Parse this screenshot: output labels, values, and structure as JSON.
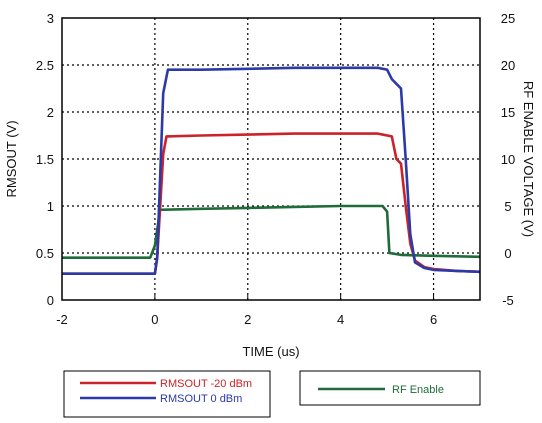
{
  "chart_data": {
    "type": "line",
    "xlabel": "TIME (us)",
    "ylabel": "RMSOUT (V)",
    "y2label": "RF ENABLE VOLTAGE (V)",
    "xlim": [
      -2,
      7
    ],
    "ylim": [
      0,
      3
    ],
    "y2lim": [
      -5,
      25
    ],
    "grid": true,
    "xticks": [
      "-2",
      "0",
      "2",
      "4",
      "6"
    ],
    "yticks": [
      "0",
      "0.5",
      "1",
      "1.5",
      "2",
      "2.5",
      "3"
    ],
    "y2ticks": [
      "-5",
      "0",
      "5",
      "10",
      "15",
      "20",
      "25"
    ],
    "legend_placement": "bottom",
    "series": [
      {
        "name": "RMSOUT -20 dBm",
        "axis": "left",
        "color": "#cc2229",
        "x": [
          -2,
          -1,
          0,
          0.05,
          0.18,
          0.25,
          1,
          2,
          3,
          4,
          4.8,
          5.1,
          5.2,
          5.3,
          5.4,
          5.5,
          5.6,
          5.8,
          6,
          6.5,
          7
        ],
        "y": [
          0.28,
          0.28,
          0.28,
          0.45,
          1.55,
          1.74,
          1.75,
          1.76,
          1.77,
          1.77,
          1.77,
          1.74,
          1.5,
          1.45,
          1.0,
          0.6,
          0.42,
          0.35,
          0.33,
          0.31,
          0.3
        ]
      },
      {
        "name": "RMSOUT 0 dBm",
        "axis": "left",
        "color": "#2b3aa8",
        "x": [
          -2,
          -1,
          0,
          0.05,
          0.18,
          0.28,
          1,
          2,
          3,
          4,
          4.8,
          5.0,
          5.1,
          5.2,
          5.3,
          5.4,
          5.5,
          5.6,
          5.8,
          6,
          6.5,
          7
        ],
        "y": [
          0.28,
          0.28,
          0.28,
          0.45,
          2.2,
          2.45,
          2.45,
          2.46,
          2.47,
          2.47,
          2.47,
          2.45,
          2.35,
          2.3,
          2.25,
          1.5,
          0.7,
          0.4,
          0.34,
          0.32,
          0.31,
          0.3
        ]
      },
      {
        "name": "RF Enable",
        "axis": "right",
        "color": "#1f6b3a",
        "x": [
          -2,
          -1,
          -0.1,
          0,
          0.08,
          0.1,
          1,
          2,
          3,
          4,
          4.9,
          5.0,
          5.05,
          5.3,
          6,
          7
        ],
        "y": [
          -0.5,
          -0.5,
          -0.5,
          0.8,
          3.5,
          4.6,
          4.7,
          4.8,
          4.9,
          5.0,
          5.0,
          4.4,
          0.0,
          -0.2,
          -0.3,
          -0.4
        ]
      }
    ]
  }
}
